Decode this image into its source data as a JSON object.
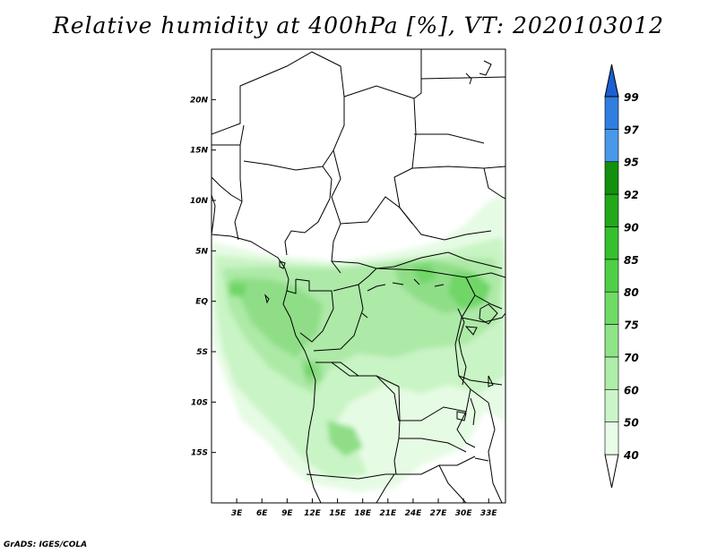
{
  "title": "Relative humidity at 400hPa [%], VT: 2020103012",
  "credit": "GrADS: IGES/COLA",
  "map": {
    "lon_range": [
      0,
      35
    ],
    "lat_range": [
      -20,
      25
    ],
    "lon_ticks": [
      {
        "lon": 3,
        "label": "3E"
      },
      {
        "lon": 6,
        "label": "6E"
      },
      {
        "lon": 9,
        "label": "9E"
      },
      {
        "lon": 12,
        "label": "12E"
      },
      {
        "lon": 15,
        "label": "15E"
      },
      {
        "lon": 18,
        "label": "18E"
      },
      {
        "lon": 21,
        "label": "21E"
      },
      {
        "lon": 24,
        "label": "24E"
      },
      {
        "lon": 27,
        "label": "27E"
      },
      {
        "lon": 30,
        "label": "30E"
      },
      {
        "lon": 33,
        "label": "33E"
      }
    ],
    "lat_ticks": [
      {
        "lat": 20,
        "label": "20N"
      },
      {
        "lat": 15,
        "label": "15N"
      },
      {
        "lat": 10,
        "label": "10N"
      },
      {
        "lat": 5,
        "label": "5N"
      },
      {
        "lat": 0,
        "label": "EQ"
      },
      {
        "lat": -5,
        "label": "5S"
      },
      {
        "lat": -10,
        "label": "10S"
      },
      {
        "lat": -15,
        "label": "15S"
      }
    ]
  },
  "colorbar": {
    "levels": [
      "40",
      "50",
      "60",
      "70",
      "75",
      "80",
      "85",
      "90",
      "92",
      "95",
      "97",
      "99"
    ],
    "colors": [
      "#e8fce8",
      "#cbf5c8",
      "#aeeea8",
      "#8fe487",
      "#6fda66",
      "#4fcf46",
      "#35c02e",
      "#22a81b",
      "#12900e",
      "#4a98ea",
      "#2f7ee0",
      "#1c5fd0"
    ],
    "bottom_color": "#ffffff",
    "top_color": "#1c5fd0"
  }
}
